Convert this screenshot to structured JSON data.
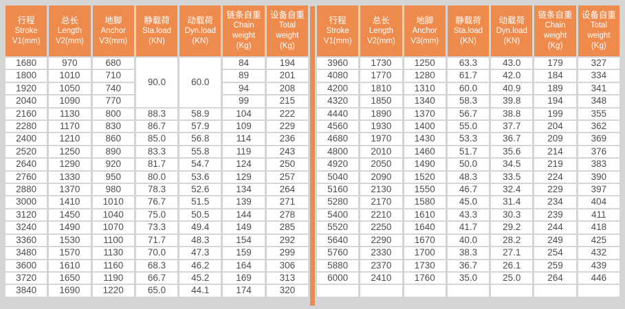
{
  "colors": {
    "accent_orange": "#ef8a4d",
    "background_gray": "#d5d5d5",
    "cell_white": "#ffffff",
    "body_text": "#4d4d4d",
    "header_text": "#ffffff"
  },
  "table": {
    "header_columns": [
      {
        "lines": [
          "行程",
          "Stroke",
          "V1(mm)"
        ]
      },
      {
        "lines": [
          "总长",
          "Length",
          "V2(mm)"
        ]
      },
      {
        "lines": [
          "地脚",
          "Anchor",
          "V3(mm)"
        ]
      },
      {
        "lines": [
          "静载荷",
          "Sta.load",
          "(KN)"
        ]
      },
      {
        "lines": [
          "动载荷",
          "Dyn.load",
          "(KN)"
        ]
      },
      {
        "lines": [
          "链条自重",
          "Chain",
          "weight",
          "(Kg)"
        ]
      },
      {
        "lines": [
          "设备自重",
          "Total",
          "weight",
          "(Kg)"
        ]
      }
    ],
    "left": {
      "merged_cells": [
        {
          "col": 3,
          "row": 0,
          "rowspan": 4,
          "value": "90.0"
        },
        {
          "col": 4,
          "row": 0,
          "rowspan": 4,
          "value": "60.0"
        }
      ],
      "rows": [
        [
          "1680",
          "970",
          "680",
          null,
          null,
          "84",
          "194"
        ],
        [
          "1800",
          "1010",
          "710",
          null,
          null,
          "89",
          "201"
        ],
        [
          "1920",
          "1050",
          "740",
          null,
          null,
          "94",
          "208"
        ],
        [
          "2040",
          "1090",
          "770",
          null,
          null,
          "99",
          "215"
        ],
        [
          "2160",
          "1130",
          "800",
          "88.3",
          "58.9",
          "104",
          "222"
        ],
        [
          "2280",
          "1170",
          "830",
          "86.7",
          "57.9",
          "109",
          "229"
        ],
        [
          "2400",
          "1210",
          "860",
          "85.0",
          "56.8",
          "114",
          "236"
        ],
        [
          "2520",
          "1250",
          "890",
          "83.3",
          "55.8",
          "119",
          "243"
        ],
        [
          "2640",
          "1290",
          "920",
          "81.7",
          "54.7",
          "124",
          "250"
        ],
        [
          "2760",
          "1330",
          "950",
          "80.0",
          "53.6",
          "129",
          "257"
        ],
        [
          "2880",
          "1370",
          "980",
          "78.3",
          "52.6",
          "134",
          "264"
        ],
        [
          "3000",
          "1410",
          "1010",
          "76.7",
          "51.5",
          "139",
          "271"
        ],
        [
          "3120",
          "1450",
          "1040",
          "75.0",
          "50.5",
          "144",
          "278"
        ],
        [
          "3240",
          "1490",
          "1070",
          "73.3",
          "49.4",
          "149",
          "285"
        ],
        [
          "3360",
          "1530",
          "1100",
          "71.7",
          "48.3",
          "154",
          "292"
        ],
        [
          "3480",
          "1570",
          "1130",
          "70.0",
          "47.3",
          "159",
          "299"
        ],
        [
          "3600",
          "1610",
          "1160",
          "68.3",
          "46.2",
          "164",
          "306"
        ],
        [
          "3720",
          "1650",
          "1190",
          "66.7",
          "45.2",
          "169",
          "313"
        ],
        [
          "3840",
          "1690",
          "1220",
          "65.0",
          "44.1",
          "174",
          "320"
        ]
      ]
    },
    "right": {
      "merged_cells": [],
      "rows": [
        [
          "3960",
          "1730",
          "1250",
          "63.3",
          "43.0",
          "179",
          "327"
        ],
        [
          "4080",
          "1770",
          "1280",
          "61.7",
          "42.0",
          "184",
          "334"
        ],
        [
          "4200",
          "1810",
          "1310",
          "60.0",
          "40.9",
          "189",
          "341"
        ],
        [
          "4320",
          "1850",
          "1340",
          "58.3",
          "39.8",
          "194",
          "348"
        ],
        [
          "4440",
          "1890",
          "1370",
          "56.7",
          "38.8",
          "199",
          "355"
        ],
        [
          "4560",
          "1930",
          "1400",
          "55.0",
          "37.7",
          "204",
          "362"
        ],
        [
          "4680",
          "1970",
          "1430",
          "53.3",
          "36.7",
          "209",
          "369"
        ],
        [
          "4800",
          "2010",
          "1460",
          "51.7",
          "35.6",
          "214",
          "376"
        ],
        [
          "4920",
          "2050",
          "1490",
          "50.0",
          "34.5",
          "219",
          "383"
        ],
        [
          "5040",
          "2090",
          "1520",
          "48.3",
          "33.5",
          "224",
          "390"
        ],
        [
          "5160",
          "2130",
          "1550",
          "46.7",
          "32.4",
          "229",
          "397"
        ],
        [
          "5280",
          "2170",
          "1580",
          "45.0",
          "31.4",
          "234",
          "404"
        ],
        [
          "5400",
          "2210",
          "1610",
          "43.3",
          "30.3",
          "239",
          "411"
        ],
        [
          "5520",
          "2250",
          "1640",
          "41.7",
          "29.2",
          "244",
          "418"
        ],
        [
          "5640",
          "2290",
          "1670",
          "40.0",
          "28.2",
          "249",
          "425"
        ],
        [
          "5760",
          "2330",
          "1700",
          "38.3",
          "27.1",
          "254",
          "432"
        ],
        [
          "5880",
          "2370",
          "1730",
          "36.7",
          "26.1",
          "259",
          "439"
        ],
        [
          "6000",
          "2410",
          "1760",
          "35.0",
          "25.0",
          "264",
          "446"
        ],
        [
          "",
          "",
          "",
          "",
          "",
          "",
          ""
        ]
      ]
    }
  }
}
